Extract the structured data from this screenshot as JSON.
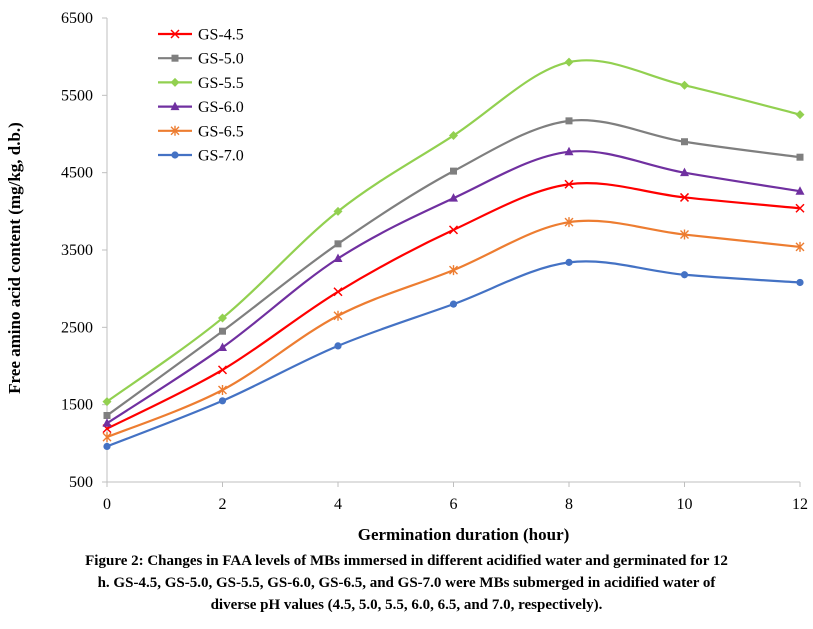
{
  "chart_data": {
    "type": "line",
    "xlabel": "Germination duration (hour)",
    "ylabel": "Free amino acid content (mg/kg, d.b.)",
    "x": [
      0,
      2,
      4,
      6,
      8,
      10,
      12
    ],
    "xlim": [
      0,
      12
    ],
    "ylim": [
      500,
      6500
    ],
    "x_ticks": [
      0,
      2,
      4,
      6,
      8,
      10,
      12
    ],
    "y_ticks": [
      500,
      1500,
      2500,
      3500,
      4500,
      5500,
      6500
    ],
    "grid": false,
    "legend_position": "top-left",
    "series": [
      {
        "name": "GS-4.5",
        "color": "#ff0000",
        "marker": "x-icon",
        "values": [
          1190,
          1950,
          2960,
          3760,
          4350,
          4180,
          4040
        ]
      },
      {
        "name": "GS-5.0",
        "color": "#7f7f7f",
        "marker": "square-icon",
        "values": [
          1360,
          2450,
          3580,
          4520,
          5170,
          4900,
          4700
        ]
      },
      {
        "name": "GS-5.5",
        "color": "#92d050",
        "marker": "diamond-icon",
        "values": [
          1540,
          2620,
          4000,
          4980,
          5930,
          5630,
          5250
        ]
      },
      {
        "name": "GS-6.0",
        "color": "#7030a0",
        "marker": "triangle-icon",
        "values": [
          1260,
          2240,
          3390,
          4170,
          4770,
          4500,
          4260
        ]
      },
      {
        "name": "GS-6.5",
        "color": "#ed7d31",
        "marker": "asterisk-icon",
        "values": [
          1080,
          1690,
          2650,
          3240,
          3860,
          3700,
          3540
        ]
      },
      {
        "name": "GS-7.0",
        "color": "#4472c4",
        "marker": "circle-icon",
        "values": [
          960,
          1550,
          2260,
          2800,
          3340,
          3180,
          3080
        ]
      }
    ]
  },
  "caption": {
    "line1": "Figure 2: Changes in FAA levels of MBs immersed in different acidified water and germinated for 12",
    "line2": "h. GS-4.5, GS-5.0, GS-5.5, GS-6.0, GS-6.5, and GS-7.0 were MBs submerged in acidified water of",
    "line3": "diverse pH values (4.5, 5.0, 5.5, 6.0, 6.5, and 7.0, respectively)."
  }
}
